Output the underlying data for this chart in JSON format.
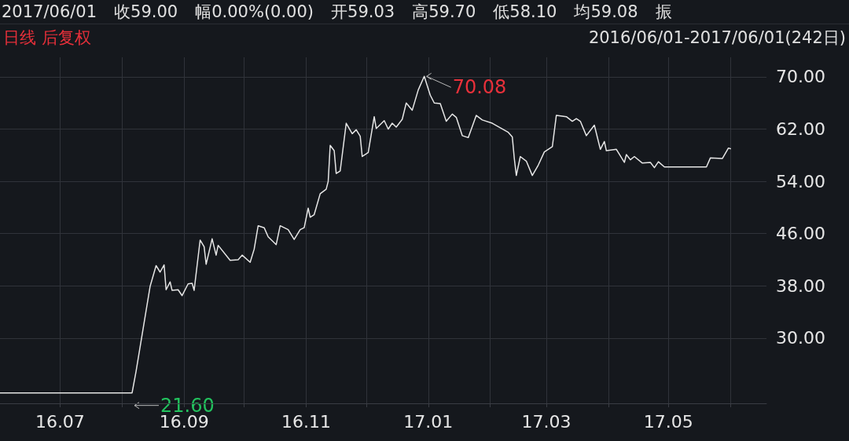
{
  "chart_data": {
    "type": "line",
    "title": "日线 后复权",
    "subtitle": "2016/06/01-2017/06/01(242日)",
    "annotations": [
      "2017/06/01",
      "收59.00",
      "幅0.00%(0.00)",
      "开59.03",
      "高59.70",
      "低58.10",
      "均59.08",
      "振",
      {
        "text": "70.08",
        "x": "2016-12-30",
        "y": 70.08
      },
      {
        "text": "21.60",
        "x": "2016-08-06",
        "y": 21.6
      }
    ],
    "x": [
      "2016-06-01",
      "2016-08-06",
      "2016-08-08",
      "2016-08-15",
      "2016-08-18",
      "2016-08-20",
      "2016-08-22",
      "2016-08-23",
      "2016-08-25",
      "2016-08-26",
      "2016-08-29",
      "2016-08-31",
      "2016-09-03",
      "2016-09-05",
      "2016-09-06",
      "2016-09-09",
      "2016-09-11",
      "2016-09-12",
      "2016-09-15",
      "2016-09-17",
      "2016-09-18",
      "2016-09-24",
      "2016-09-28",
      "2016-09-30",
      "2016-10-04",
      "2016-10-06",
      "2016-10-08",
      "2016-10-11",
      "2016-10-13",
      "2016-10-17",
      "2016-10-19",
      "2016-10-23",
      "2016-10-26",
      "2016-10-29",
      "2016-10-31",
      "2016-11-02",
      "2016-11-03",
      "2016-11-05",
      "2016-11-08",
      "2016-11-11",
      "2016-11-12",
      "2016-11-13",
      "2016-11-15",
      "2016-11-16",
      "2016-11-18",
      "2016-11-21",
      "2016-11-24",
      "2016-11-26",
      "2016-11-28",
      "2016-11-29",
      "2016-12-02",
      "2016-12-05",
      "2016-12-06",
      "2016-12-10",
      "2016-12-12",
      "2016-12-14",
      "2016-12-16",
      "2016-12-19",
      "2016-12-21",
      "2016-12-24",
      "2016-12-27",
      "2016-12-30",
      "2017-01-02",
      "2017-01-04",
      "2017-01-07",
      "2017-01-10",
      "2017-01-13",
      "2017-01-15",
      "2017-01-18",
      "2017-01-21",
      "2017-01-25",
      "2017-01-28",
      "2017-02-02",
      "2017-02-06",
      "2017-02-10",
      "2017-02-12",
      "2017-02-13",
      "2017-02-14",
      "2017-02-16",
      "2017-02-19",
      "2017-02-22",
      "2017-02-25",
      "2017-02-28",
      "2017-03-04",
      "2017-03-06",
      "2017-03-11",
      "2017-03-14",
      "2017-03-16",
      "2017-03-18",
      "2017-03-21",
      "2017-03-25",
      "2017-03-28",
      "2017-03-30",
      "2017-03-31",
      "2017-04-05",
      "2017-04-09",
      "2017-04-10",
      "2017-04-12",
      "2017-04-14",
      "2017-04-18",
      "2017-04-22",
      "2017-04-24",
      "2017-04-26",
      "2017-04-29",
      "2017-05-20",
      "2017-05-22",
      "2017-05-28",
      "2017-05-31",
      "2017-06-01"
    ],
    "values": [
      21.6,
      21.6,
      24.9,
      37.9,
      41.1,
      40.1,
      41.2,
      37.4,
      38.6,
      37.3,
      37.4,
      36.5,
      38.3,
      38.4,
      37.3,
      45.0,
      44.0,
      41.3,
      45.2,
      42.7,
      44.2,
      41.9,
      42.0,
      42.7,
      41.6,
      43.6,
      47.2,
      46.9,
      45.5,
      44.3,
      47.2,
      46.6,
      45.1,
      46.6,
      46.9,
      49.9,
      48.5,
      48.9,
      52.1,
      52.8,
      54.0,
      59.5,
      58.7,
      55.2,
      55.6,
      62.9,
      61.3,
      61.9,
      60.9,
      57.8,
      58.4,
      63.9,
      62.1,
      63.3,
      62.0,
      62.9,
      62.3,
      63.5,
      66.0,
      64.9,
      68.0,
      70.08,
      67.2,
      66.0,
      65.9,
      63.2,
      64.3,
      63.8,
      61.0,
      60.7,
      64.1,
      63.4,
      62.9,
      62.2,
      61.5,
      60.8,
      57.5,
      54.9,
      57.8,
      57.1,
      54.9,
      56.5,
      58.5,
      59.3,
      64.1,
      63.9,
      63.2,
      63.6,
      63.2,
      61.0,
      62.6,
      58.9,
      60.1,
      58.7,
      58.9,
      56.9,
      58.1,
      57.3,
      57.8,
      56.8,
      56.9,
      56.1,
      57.0,
      56.2,
      56.2,
      57.6,
      57.5,
      59.1,
      59.0
    ],
    "color": "#e6e6e6",
    "xlim": [
      "2016-06-01",
      "2017-06-19"
    ],
    "xticks": [
      {
        "value": "2016-07-01",
        "label": "16.07"
      },
      {
        "value": "2016-08-01",
        "label": null
      },
      {
        "value": "2016-09-01",
        "label": "16.09"
      },
      {
        "value": "2016-10-01",
        "label": null
      },
      {
        "value": "2016-11-01",
        "label": "16.11"
      },
      {
        "value": "2016-12-01",
        "label": null
      },
      {
        "value": "2017-01-01",
        "label": "17.01"
      },
      {
        "value": "2017-02-01",
        "label": null
      },
      {
        "value": "2017-03-01",
        "label": "17.03"
      },
      {
        "value": "2017-04-01",
        "label": null
      },
      {
        "value": "2017-05-01",
        "label": "17.05"
      },
      {
        "value": "2017-06-01",
        "label": null
      }
    ],
    "ylim": [
      20,
      73
    ],
    "yticks": [
      {
        "value": 30,
        "label": "30.00"
      },
      {
        "value": 38,
        "label": "38.00"
      },
      {
        "value": 46,
        "label": "46.00"
      },
      {
        "value": 54,
        "label": "54.00"
      },
      {
        "value": 62,
        "label": "62.00"
      },
      {
        "value": 70,
        "label": "70.00"
      }
    ],
    "grid": true,
    "marker": "none",
    "line_style": "solid"
  }
}
